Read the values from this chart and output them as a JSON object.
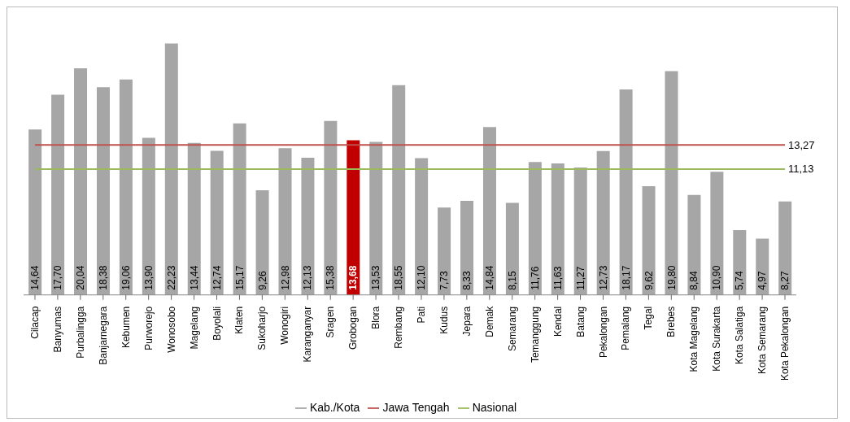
{
  "chart_data": {
    "type": "bar",
    "categories": [
      "Cilacap",
      "Banyumas",
      "Purbalingga",
      "Banjarnegara",
      "Kebumen",
      "Purworejo",
      "Wonosobo",
      "Magelang",
      "Boyolali",
      "Klaten",
      "Sukoharjo",
      "Wonogiri",
      "Karanganyar",
      "Sragen",
      "Grobogan",
      "Blora",
      "Rembang",
      "Pati",
      "Kudus",
      "Jepara",
      "Demak",
      "Semarang",
      "Temanggung",
      "Kendal",
      "Batang",
      "Pekalongan",
      "Pemalang",
      "Tegal",
      "Brebes",
      "Kota Magelang",
      "Kota Surakarta",
      "Kota Salatiga",
      "Kota Semarang",
      "Kota Pekalongan"
    ],
    "series": [
      {
        "name": "Kab./Kota",
        "color": "#a6a6a6",
        "colors": [
          "#a6a6a6",
          "#a6a6a6",
          "#a6a6a6",
          "#a6a6a6",
          "#a6a6a6",
          "#a6a6a6",
          "#a6a6a6",
          "#a6a6a6",
          "#a6a6a6",
          "#a6a6a6",
          "#a6a6a6",
          "#a6a6a6",
          "#a6a6a6",
          "#a6a6a6",
          "#c00000",
          "#a6a6a6",
          "#a6a6a6",
          "#a6a6a6",
          "#a6a6a6",
          "#a6a6a6",
          "#a6a6a6",
          "#a6a6a6",
          "#a6a6a6",
          "#a6a6a6",
          "#a6a6a6",
          "#a6a6a6",
          "#a6a6a6",
          "#a6a6a6",
          "#a6a6a6",
          "#a6a6a6",
          "#a6a6a6",
          "#a6a6a6",
          "#a6a6a6",
          "#a6a6a6"
        ],
        "values": [
          14.64,
          17.7,
          20.04,
          18.38,
          19.06,
          13.9,
          22.23,
          13.44,
          12.74,
          15.17,
          9.26,
          12.98,
          12.13,
          15.38,
          13.68,
          13.53,
          18.55,
          12.1,
          7.73,
          8.33,
          14.84,
          8.15,
          11.76,
          11.63,
          11.27,
          12.73,
          18.17,
          9.62,
          19.8,
          8.84,
          10.9,
          5.74,
          4.97,
          8.27
        ],
        "value_labels": [
          "14,64",
          "17,70",
          "20,04",
          "18,38",
          "19,06",
          "13,90",
          "22,23",
          "13,44",
          "12,74",
          "15,17",
          "9,26",
          "12,98",
          "12,13",
          "15,38",
          "13,68",
          "13,53",
          "18,55",
          "12,10",
          "7,73",
          "8,33",
          "14,84",
          "8,15",
          "11,76",
          "11,63",
          "11,27",
          "12,73",
          "18,17",
          "9,62",
          "19,80",
          "8,84",
          "10,90",
          "5,74",
          "4,97",
          "8,27"
        ]
      },
      {
        "name": "Jawa Tengah",
        "type": "line",
        "color": "#c0504d",
        "values": [
          13.27,
          13.27,
          13.27,
          13.27,
          13.27,
          13.27,
          13.27,
          13.27,
          13.27,
          13.27,
          13.27,
          13.27,
          13.27,
          13.27,
          13.27,
          13.27,
          13.27,
          13.27,
          13.27,
          13.27,
          13.27,
          13.27,
          13.27,
          13.27,
          13.27,
          13.27,
          13.27,
          13.27,
          13.27,
          13.27,
          13.27,
          13.27,
          13.27,
          13.27
        ],
        "value_labels": [
          null,
          null,
          null,
          null,
          null,
          null,
          null,
          null,
          null,
          null,
          null,
          null,
          null,
          null,
          null,
          null,
          null,
          null,
          null,
          null,
          null,
          null,
          null,
          null,
          null,
          null,
          null,
          null,
          null,
          null,
          null,
          null,
          null,
          "13,27"
        ]
      },
      {
        "name": "Nasional",
        "type": "line",
        "color": "#9bbb59",
        "values": [
          11.13,
          11.13,
          11.13,
          11.13,
          11.13,
          11.13,
          11.13,
          11.13,
          11.13,
          11.13,
          11.13,
          11.13,
          11.13,
          11.13,
          11.13,
          11.13,
          11.13,
          11.13,
          11.13,
          11.13,
          11.13,
          11.13,
          11.13,
          11.13,
          11.13,
          11.13,
          11.13,
          11.13,
          11.13,
          11.13,
          11.13,
          11.13,
          11.13,
          11.13
        ],
        "value_labels": [
          null,
          null,
          null,
          null,
          null,
          null,
          null,
          null,
          null,
          null,
          null,
          null,
          null,
          null,
          null,
          null,
          null,
          null,
          null,
          null,
          null,
          null,
          null,
          null,
          null,
          null,
          null,
          null,
          null,
          null,
          null,
          null,
          null,
          "11,13"
        ]
      }
    ],
    "legend": "bottom",
    "marker": "none",
    "line_style": "solid",
    "tick_labels": "x"
  }
}
